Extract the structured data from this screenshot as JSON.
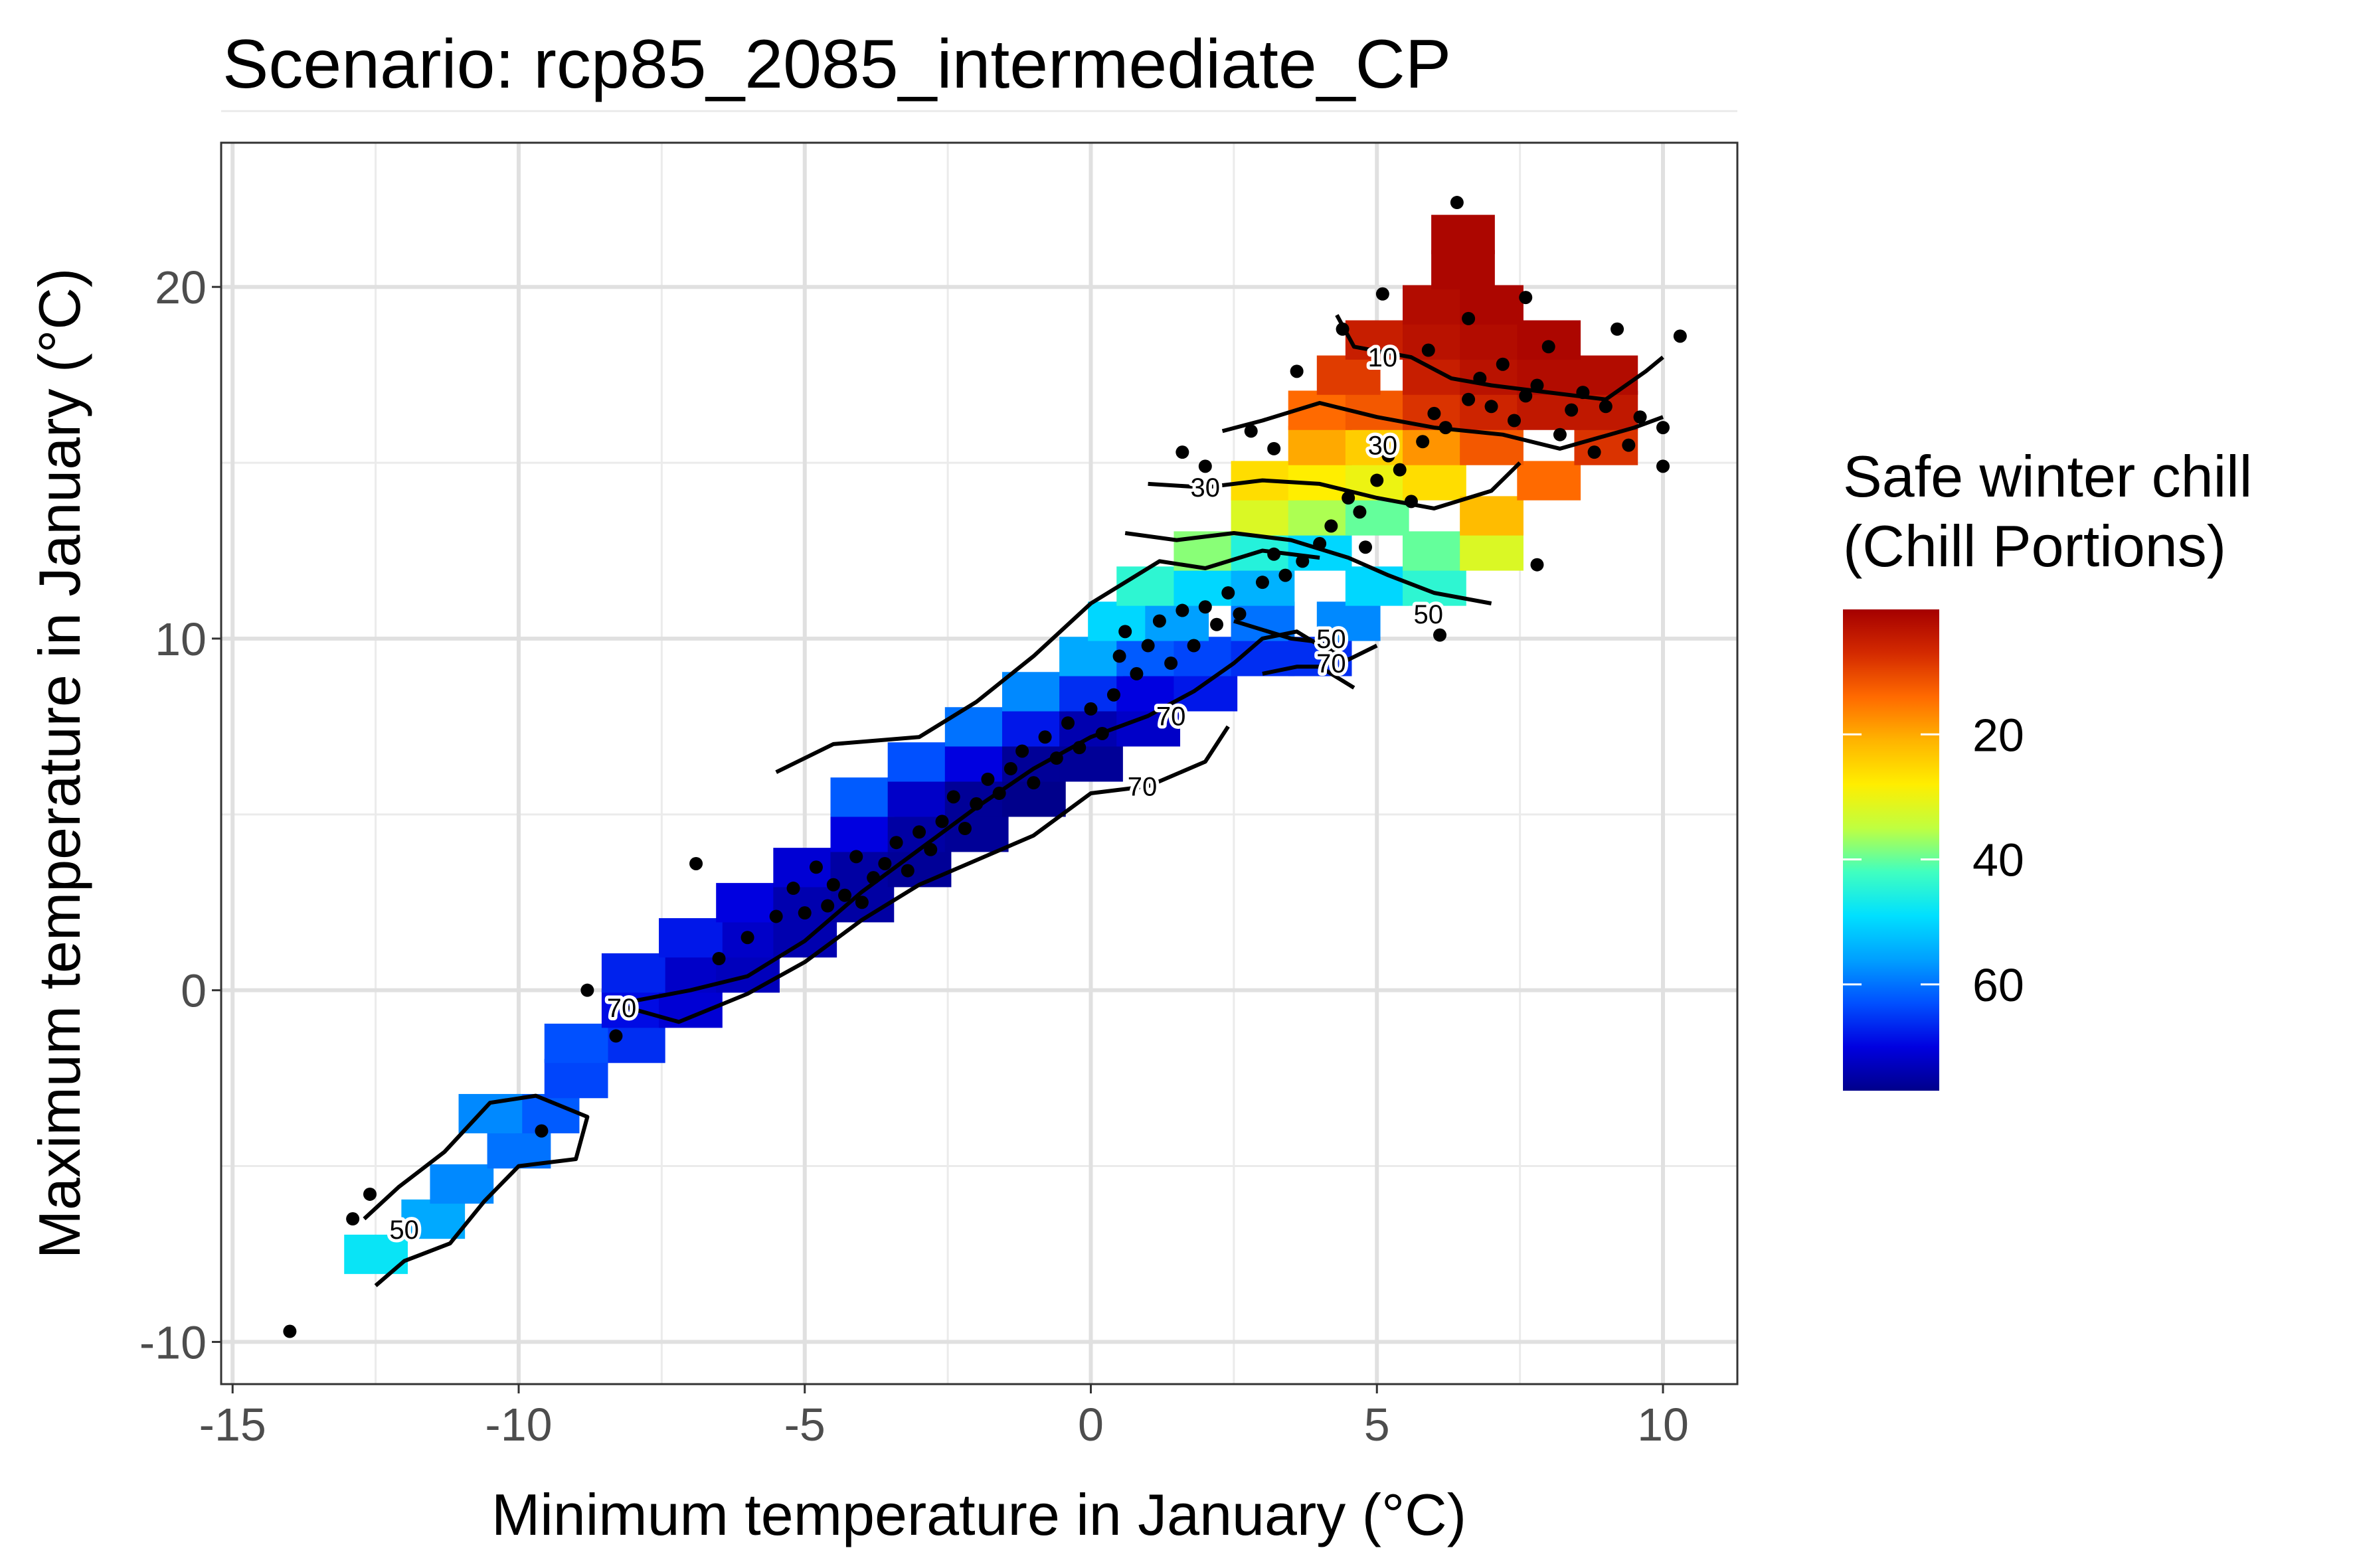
{
  "chart_data": {
    "type": "heatmap",
    "title": "Scenario: rcp85_2085_intermediate_CP",
    "xlabel": "Minimum temperature in January (°C)",
    "ylabel": "Maximum temperature in January (°C)",
    "xlim": [
      -15.2,
      11.3
    ],
    "ylim": [
      -11.2,
      24.1
    ],
    "x_ticks": [
      -15,
      -10,
      -5,
      0,
      5,
      10
    ],
    "x_tick_labels": [
      "-15",
      "-10",
      "-5",
      "0",
      "5",
      "10"
    ],
    "y_ticks": [
      -10,
      0,
      10,
      20
    ],
    "y_tick_labels": [
      "-10",
      "0",
      "10",
      "20"
    ],
    "grid": true,
    "legend": {
      "title_line1": "Safe winter chill",
      "title_line2": "(Chill Portions)",
      "placement": "right",
      "range": [
        0,
        77
      ],
      "ticks": [
        20,
        40,
        60
      ],
      "tick_labels": [
        "20",
        "40",
        "60"
      ],
      "colors": [
        "#a50000",
        "#d42a00",
        "#ff6a00",
        "#ffb400",
        "#ffee00",
        "#bfff40",
        "#40ffc0",
        "#00e0ff",
        "#00a0ff",
        "#0050ff",
        "#0000e0",
        "#00008b"
      ]
    },
    "surface_cells": [
      {
        "x": -12.5,
        "y": -7.5,
        "value": 48
      },
      {
        "x": -11.5,
        "y": -6.5,
        "value": 55
      },
      {
        "x": -11,
        "y": -5.5,
        "value": 58
      },
      {
        "x": -10,
        "y": -4.5,
        "value": 60
      },
      {
        "x": -9.5,
        "y": -3.5,
        "value": 62
      },
      {
        "x": -10.5,
        "y": -3.5,
        "value": 58
      },
      {
        "x": -9,
        "y": -2.5,
        "value": 64
      },
      {
        "x": -8,
        "y": -1.5,
        "value": 66
      },
      {
        "x": -9,
        "y": -1.5,
        "value": 63
      },
      {
        "x": -8,
        "y": -0.5,
        "value": 69
      },
      {
        "x": -7,
        "y": -0.5,
        "value": 71
      },
      {
        "x": -7,
        "y": 0.5,
        "value": 72
      },
      {
        "x": -6,
        "y": 0.5,
        "value": 73
      },
      {
        "x": -8,
        "y": 0.5,
        "value": 67
      },
      {
        "x": -6,
        "y": 1.5,
        "value": 72
      },
      {
        "x": -7,
        "y": 1.5,
        "value": 68
      },
      {
        "x": -5,
        "y": 1.5,
        "value": 74
      },
      {
        "x": -6,
        "y": 2.5,
        "value": 70
      },
      {
        "x": -5,
        "y": 2.5,
        "value": 74
      },
      {
        "x": -4,
        "y": 2.5,
        "value": 75
      },
      {
        "x": -5,
        "y": 3.5,
        "value": 71
      },
      {
        "x": -4,
        "y": 3.5,
        "value": 75
      },
      {
        "x": -3,
        "y": 3.5,
        "value": 76
      },
      {
        "x": -4,
        "y": 4.5,
        "value": 70
      },
      {
        "x": -3,
        "y": 4.5,
        "value": 75
      },
      {
        "x": -2,
        "y": 4.5,
        "value": 76
      },
      {
        "x": -4,
        "y": 5.5,
        "value": 62
      },
      {
        "x": -3,
        "y": 5.5,
        "value": 72
      },
      {
        "x": -2,
        "y": 5.5,
        "value": 76
      },
      {
        "x": -1,
        "y": 5.5,
        "value": 77
      },
      {
        "x": -3,
        "y": 6.5,
        "value": 63
      },
      {
        "x": -2,
        "y": 6.5,
        "value": 70
      },
      {
        "x": -1,
        "y": 6.5,
        "value": 76
      },
      {
        "x": 0,
        "y": 6.5,
        "value": 76
      },
      {
        "x": -2,
        "y": 7.5,
        "value": 60
      },
      {
        "x": -1,
        "y": 7.5,
        "value": 68
      },
      {
        "x": 0,
        "y": 7.5,
        "value": 74
      },
      {
        "x": 1,
        "y": 7.5,
        "value": 72
      },
      {
        "x": -1,
        "y": 8.5,
        "value": 58
      },
      {
        "x": 0,
        "y": 8.5,
        "value": 66
      },
      {
        "x": 1,
        "y": 8.5,
        "value": 70
      },
      {
        "x": 2,
        "y": 8.5,
        "value": 68
      },
      {
        "x": 0,
        "y": 9.5,
        "value": 55
      },
      {
        "x": 1,
        "y": 9.5,
        "value": 62
      },
      {
        "x": 2,
        "y": 9.5,
        "value": 64
      },
      {
        "x": 3,
        "y": 9.5,
        "value": 66
      },
      {
        "x": 0.5,
        "y": 10.5,
        "value": 50
      },
      {
        "x": 1.5,
        "y": 10.5,
        "value": 56
      },
      {
        "x": 3,
        "y": 10.5,
        "value": 60
      },
      {
        "x": 4,
        "y": 9.5,
        "value": 66
      },
      {
        "x": 1,
        "y": 11.5,
        "value": 44
      },
      {
        "x": 2,
        "y": 11.5,
        "value": 50
      },
      {
        "x": 3,
        "y": 11.5,
        "value": 54
      },
      {
        "x": 4.5,
        "y": 10.5,
        "value": 58
      },
      {
        "x": 2,
        "y": 12.5,
        "value": 38
      },
      {
        "x": 3,
        "y": 12.5,
        "value": 45
      },
      {
        "x": 4,
        "y": 12.5,
        "value": 50
      },
      {
        "x": 5,
        "y": 11.5,
        "value": 50
      },
      {
        "x": 6,
        "y": 11.5,
        "value": 44
      },
      {
        "x": 3,
        "y": 13.5,
        "value": 32
      },
      {
        "x": 4,
        "y": 13.5,
        "value": 36
      },
      {
        "x": 5,
        "y": 13.5,
        "value": 40
      },
      {
        "x": 6,
        "y": 12.5,
        "value": 40
      },
      {
        "x": 7,
        "y": 12.5,
        "value": 32
      },
      {
        "x": 3,
        "y": 14.5,
        "value": 26
      },
      {
        "x": 4,
        "y": 14.5,
        "value": 28
      },
      {
        "x": 5,
        "y": 14.5,
        "value": 30
      },
      {
        "x": 6,
        "y": 14.5,
        "value": 26
      },
      {
        "x": 7,
        "y": 13.5,
        "value": 22
      },
      {
        "x": 8,
        "y": 14.5,
        "value": 14
      },
      {
        "x": 4,
        "y": 15.5,
        "value": 20
      },
      {
        "x": 5,
        "y": 15.5,
        "value": 24
      },
      {
        "x": 6,
        "y": 15.5,
        "value": 18
      },
      {
        "x": 7,
        "y": 15.5,
        "value": 12
      },
      {
        "x": 9,
        "y": 15.5,
        "value": 8
      },
      {
        "x": 4,
        "y": 16.5,
        "value": 14
      },
      {
        "x": 5,
        "y": 16.5,
        "value": 12
      },
      {
        "x": 6,
        "y": 16.5,
        "value": 8
      },
      {
        "x": 7,
        "y": 16.5,
        "value": 6
      },
      {
        "x": 8,
        "y": 16.5,
        "value": 4
      },
      {
        "x": 9,
        "y": 16.5,
        "value": 4
      },
      {
        "x": 4.5,
        "y": 17.5,
        "value": 9
      },
      {
        "x": 6,
        "y": 17.5,
        "value": 5
      },
      {
        "x": 7,
        "y": 17.5,
        "value": 3
      },
      {
        "x": 8,
        "y": 17.5,
        "value": 2
      },
      {
        "x": 9,
        "y": 17.5,
        "value": 2
      },
      {
        "x": 5,
        "y": 18.5,
        "value": 5
      },
      {
        "x": 6,
        "y": 18.5,
        "value": 3
      },
      {
        "x": 7,
        "y": 18.5,
        "value": 2
      },
      {
        "x": 8,
        "y": 18.5,
        "value": 1
      },
      {
        "x": 6,
        "y": 19.5,
        "value": 2
      },
      {
        "x": 7,
        "y": 19.5,
        "value": 1
      },
      {
        "x": 6.5,
        "y": 20.5,
        "value": 1
      },
      {
        "x": 6.5,
        "y": 21.5,
        "value": 1
      }
    ],
    "contours": [
      {
        "level": 10,
        "points": [
          [
            4.3,
            19.2
          ],
          [
            4.6,
            18.3
          ],
          [
            5.6,
            18.0
          ],
          [
            6.3,
            17.4
          ],
          [
            7.0,
            17.2
          ],
          [
            8.0,
            17.0
          ],
          [
            9.0,
            16.8
          ],
          [
            9.7,
            17.6
          ],
          [
            10.0,
            18.0
          ]
        ]
      },
      {
        "level": 30,
        "points": [
          [
            2.3,
            15.9
          ],
          [
            3.0,
            16.2
          ],
          [
            4.0,
            16.7
          ],
          [
            5.0,
            16.3
          ],
          [
            6.0,
            16.0
          ],
          [
            7.2,
            15.8
          ],
          [
            8.2,
            15.4
          ],
          [
            9.5,
            16.0
          ],
          [
            10.0,
            16.3
          ]
        ]
      },
      {
        "level": 30,
        "points": [
          [
            1.0,
            14.4
          ],
          [
            2.0,
            14.3
          ],
          [
            3.0,
            14.5
          ],
          [
            4.0,
            14.4
          ],
          [
            5.0,
            14.0
          ],
          [
            6.0,
            13.7
          ],
          [
            7.0,
            14.2
          ],
          [
            7.5,
            15.0
          ]
        ]
      },
      {
        "level": 50,
        "points": [
          [
            0.6,
            13.0
          ],
          [
            1.5,
            12.8
          ],
          [
            2.5,
            13.0
          ],
          [
            3.5,
            12.8
          ],
          [
            4.5,
            12.3
          ],
          [
            5.2,
            11.8
          ],
          [
            6.0,
            11.3
          ],
          [
            7.0,
            11.0
          ]
        ]
      },
      {
        "level": 50,
        "points": [
          [
            -5.5,
            6.2
          ],
          [
            -4.5,
            7.0
          ],
          [
            -3.0,
            7.2
          ],
          [
            -2.0,
            8.2
          ],
          [
            -1.0,
            9.5
          ],
          [
            0.0,
            11.0
          ],
          [
            1.2,
            12.2
          ],
          [
            2.0,
            12.0
          ],
          [
            3.0,
            12.5
          ],
          [
            4.0,
            12.3
          ]
        ]
      },
      {
        "level": 50,
        "points": [
          [
            -12.5,
            -8.4
          ],
          [
            -12.0,
            -7.7
          ],
          [
            -11.2,
            -7.2
          ],
          [
            -10.6,
            -6.0
          ],
          [
            -10.0,
            -5.0
          ],
          [
            -9.0,
            -4.8
          ],
          [
            -8.8,
            -3.6
          ],
          [
            -9.7,
            -3.0
          ],
          [
            -10.5,
            -3.2
          ],
          [
            -11.3,
            -4.6
          ],
          [
            -12.1,
            -5.6
          ],
          [
            -12.7,
            -6.5
          ]
        ]
      },
      {
        "level": 50,
        "points": [
          [
            2.5,
            10.5
          ],
          [
            3.5,
            10.0
          ],
          [
            4.0,
            9.9
          ],
          [
            4.5,
            9.4
          ],
          [
            5.0,
            9.8
          ]
        ]
      },
      {
        "level": 70,
        "points": [
          [
            -8.3,
            -0.4
          ],
          [
            -7.0,
            0.0
          ],
          [
            -6.0,
            0.4
          ],
          [
            -5.0,
            1.4
          ],
          [
            -4.0,
            2.8
          ],
          [
            -3.0,
            4.0
          ],
          [
            -2.0,
            5.2
          ],
          [
            -1.0,
            6.3
          ],
          [
            0.0,
            7.2
          ],
          [
            1.0,
            7.8
          ],
          [
            1.8,
            8.5
          ],
          [
            2.5,
            9.3
          ],
          [
            3.0,
            10.0
          ],
          [
            3.6,
            10.2
          ],
          [
            4.2,
            9.6
          ]
        ]
      },
      {
        "level": 70,
        "points": [
          [
            -8.3,
            -0.4
          ],
          [
            -7.2,
            -0.9
          ],
          [
            -6.0,
            -0.1
          ],
          [
            -5.0,
            0.8
          ],
          [
            -4.0,
            2.0
          ],
          [
            -3.0,
            3.0
          ],
          [
            -2.0,
            3.7
          ],
          [
            -1.0,
            4.4
          ],
          [
            0.0,
            5.6
          ],
          [
            1.0,
            5.8
          ],
          [
            2.0,
            6.5
          ],
          [
            2.4,
            7.5
          ]
        ]
      },
      {
        "level": 70,
        "points": [
          [
            3.0,
            9.0
          ],
          [
            3.6,
            9.2
          ],
          [
            4.0,
            9.2
          ],
          [
            4.6,
            8.6
          ]
        ]
      }
    ],
    "contour_labels": [
      {
        "text": "10",
        "x": 5.1,
        "y": 18.0
      },
      {
        "text": "30",
        "x": 5.1,
        "y": 15.5
      },
      {
        "text": "30",
        "x": 2.0,
        "y": 14.3
      },
      {
        "text": "50",
        "x": 5.9,
        "y": 10.7
      },
      {
        "text": "50",
        "x": 4.2,
        "y": 10.0
      },
      {
        "text": "70",
        "x": 4.2,
        "y": 9.3
      },
      {
        "text": "70",
        "x": 1.4,
        "y": 7.8
      },
      {
        "text": "70",
        "x": 0.9,
        "y": 5.8
      },
      {
        "text": "70",
        "x": -8.2,
        "y": -0.5
      },
      {
        "text": "50",
        "x": -12.0,
        "y": -6.8
      }
    ],
    "observations": [
      [
        -14.0,
        -9.7
      ],
      [
        -12.9,
        -6.5
      ],
      [
        -12.6,
        -5.8
      ],
      [
        -9.6,
        -4.0
      ],
      [
        -8.8,
        0.0
      ],
      [
        -8.3,
        -1.3
      ],
      [
        -6.9,
        3.6
      ],
      [
        -6.5,
        0.9
      ],
      [
        -6.0,
        1.5
      ],
      [
        -5.5,
        2.1
      ],
      [
        -5.2,
        2.9
      ],
      [
        -5.0,
        2.2
      ],
      [
        -4.8,
        3.5
      ],
      [
        -4.6,
        2.4
      ],
      [
        -4.5,
        3.0
      ],
      [
        -4.3,
        2.7
      ],
      [
        -4.1,
        3.8
      ],
      [
        -4.0,
        2.5
      ],
      [
        -3.8,
        3.2
      ],
      [
        -3.6,
        3.6
      ],
      [
        -3.4,
        4.2
      ],
      [
        -3.2,
        3.4
      ],
      [
        -3.0,
        4.5
      ],
      [
        -2.8,
        4.0
      ],
      [
        -2.6,
        4.8
      ],
      [
        -2.4,
        5.5
      ],
      [
        -2.2,
        4.6
      ],
      [
        -2.0,
        5.3
      ],
      [
        -1.8,
        6.0
      ],
      [
        -1.6,
        5.6
      ],
      [
        -1.4,
        6.3
      ],
      [
        -1.2,
        6.8
      ],
      [
        -1.0,
        5.9
      ],
      [
        -0.8,
        7.2
      ],
      [
        -0.6,
        6.6
      ],
      [
        -0.4,
        7.6
      ],
      [
        -0.2,
        6.9
      ],
      [
        0.0,
        8.0
      ],
      [
        0.2,
        7.3
      ],
      [
        0.4,
        8.4
      ],
      [
        0.5,
        9.5
      ],
      [
        0.6,
        10.2
      ],
      [
        0.8,
        9.0
      ],
      [
        1.0,
        9.8
      ],
      [
        1.2,
        10.5
      ],
      [
        1.4,
        9.3
      ],
      [
        1.6,
        10.8
      ],
      [
        1.8,
        9.8
      ],
      [
        2.0,
        10.9
      ],
      [
        2.2,
        10.4
      ],
      [
        2.4,
        11.3
      ],
      [
        2.6,
        10.7
      ],
      [
        3.0,
        11.6
      ],
      [
        3.2,
        12.4
      ],
      [
        3.4,
        11.8
      ],
      [
        3.7,
        12.2
      ],
      [
        4.0,
        12.7
      ],
      [
        4.2,
        13.2
      ],
      [
        4.5,
        14.0
      ],
      [
        4.7,
        13.6
      ],
      [
        4.8,
        12.6
      ],
      [
        5.0,
        14.5
      ],
      [
        5.2,
        15.2
      ],
      [
        5.4,
        14.8
      ],
      [
        5.6,
        13.9
      ],
      [
        5.8,
        15.6
      ],
      [
        6.0,
        16.4
      ],
      [
        6.2,
        16.0
      ],
      [
        6.4,
        22.4
      ],
      [
        6.6,
        16.8
      ],
      [
        6.8,
        17.4
      ],
      [
        7.0,
        16.6
      ],
      [
        7.2,
        17.8
      ],
      [
        7.4,
        16.2
      ],
      [
        7.6,
        16.9
      ],
      [
        7.8,
        17.2
      ],
      [
        8.0,
        18.3
      ],
      [
        8.2,
        15.8
      ],
      [
        8.4,
        16.5
      ],
      [
        8.6,
        17.0
      ],
      [
        8.8,
        15.3
      ],
      [
        9.0,
        16.6
      ],
      [
        9.2,
        18.8
      ],
      [
        9.4,
        15.5
      ],
      [
        9.6,
        16.3
      ],
      [
        10.0,
        16.0
      ],
      [
        10.0,
        14.9
      ],
      [
        10.3,
        18.6
      ],
      [
        7.8,
        12.1
      ],
      [
        6.1,
        10.1
      ],
      [
        5.1,
        19.8
      ],
      [
        5.9,
        18.2
      ],
      [
        6.6,
        19.1
      ],
      [
        7.6,
        19.7
      ],
      [
        4.4,
        18.8
      ],
      [
        3.6,
        17.6
      ],
      [
        3.2,
        15.4
      ],
      [
        2.8,
        15.9
      ],
      [
        2.0,
        14.9
      ],
      [
        1.6,
        15.3
      ]
    ]
  }
}
